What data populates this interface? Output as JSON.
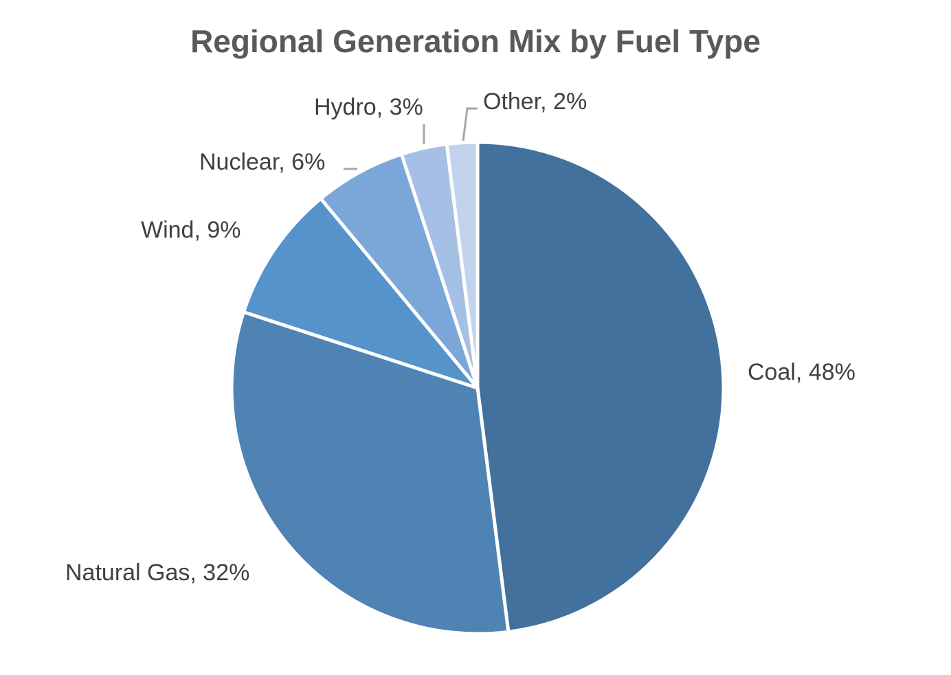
{
  "chart_data": {
    "type": "pie",
    "title": "Regional Generation Mix by Fuel Type",
    "categories": [
      "Coal",
      "Natural Gas",
      "Wind",
      "Nuclear",
      "Hydro",
      "Other"
    ],
    "values": [
      48,
      32,
      9,
      6,
      3,
      2
    ],
    "unit": "%",
    "data_labels": [
      "Coal, 48%",
      "Natural Gas, 32%",
      "Wind, 9%",
      "Nuclear, 6%",
      "Hydro, 3%",
      "Other, 2%"
    ],
    "colors": [
      "#41719C",
      "#4E83B4",
      "#5593CA",
      "#7BA7D8",
      "#A6BFE4",
      "#C2D3EC"
    ],
    "start_angle_deg": 0,
    "direction": "clockwise",
    "legend": "none"
  }
}
